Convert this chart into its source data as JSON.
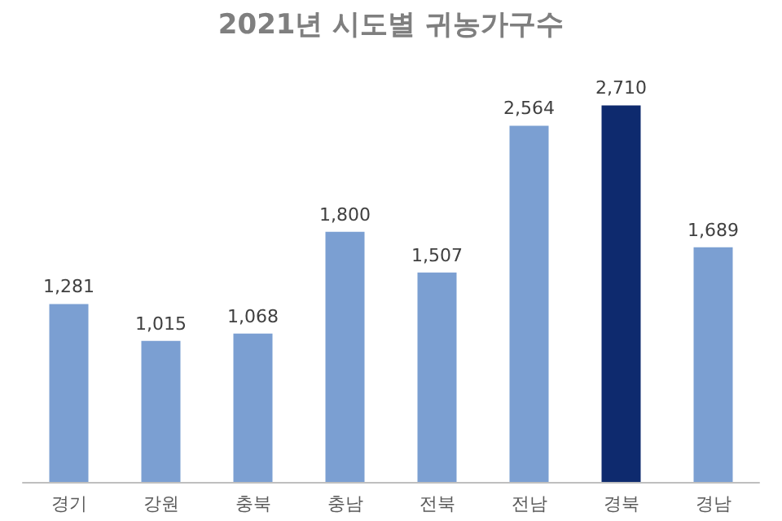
{
  "chart_data": {
    "type": "bar",
    "title": "2021년 시도별 귀농가구수",
    "categories": [
      "경기",
      "강원",
      "충북",
      "충남",
      "전북",
      "전남",
      "경북",
      "경남"
    ],
    "values": [
      1281,
      1015,
      1068,
      1800,
      1507,
      2564,
      2710,
      1689
    ],
    "value_labels": [
      "1,281",
      "1,015",
      "1,068",
      "1,800",
      "1,507",
      "2,564",
      "2,710",
      "1,689"
    ],
    "colors": [
      "#7b9fd2",
      "#7b9fd2",
      "#7b9fd2",
      "#7b9fd2",
      "#7b9fd2",
      "#7b9fd2",
      "#0e2a6e",
      "#7b9fd2"
    ]
  }
}
